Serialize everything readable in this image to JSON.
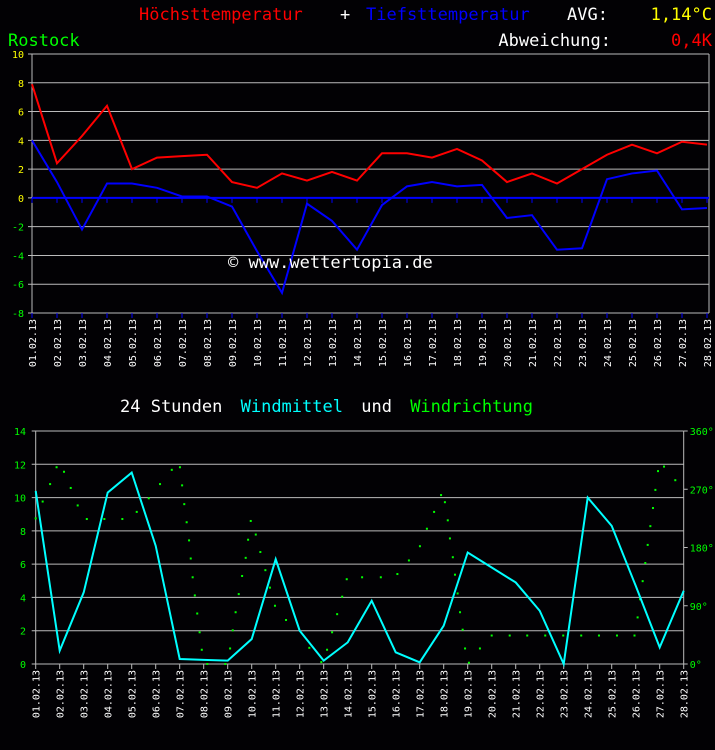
{
  "header": {
    "title_high": "Höchsttemperatur",
    "title_plus": "+",
    "title_low": "Tiefsttemperatur",
    "avg_label": "AVG:",
    "avg_value": "1,14°C",
    "location": "Rostock",
    "deviation_label": "Abweichung:",
    "deviation_value": "0,4K",
    "watermark": "© www.wettertopia.de"
  },
  "colors": {
    "background": "#020104",
    "high": "#ff0000",
    "low": "#0000ff",
    "wind_speed": "#00ffff",
    "wind_dir": "#00ff00",
    "grid": "#bbbbbb",
    "positive_tick": "#ffff00",
    "negative_tick": "#00ff00"
  },
  "wind_title": {
    "part1": "24 Stunden",
    "part2": "Windmittel",
    "part3": "und",
    "part4": "Windrichtung"
  },
  "chart_data": [
    {
      "type": "line",
      "categories": [
        "01.02.13",
        "02.02.13",
        "03.02.13",
        "04.02.13",
        "05.02.13",
        "06.02.13",
        "07.02.13",
        "08.02.13",
        "09.02.13",
        "10.02.13",
        "11.02.13",
        "12.02.13",
        "13.02.13",
        "14.02.13",
        "15.02.13",
        "16.02.13",
        "17.02.13",
        "18.02.13",
        "19.02.13",
        "20.02.13",
        "21.02.13",
        "22.02.13",
        "23.02.13",
        "24.02.13",
        "25.02.13",
        "26.02.13",
        "27.02.13",
        "28.02.13"
      ],
      "series": [
        {
          "name": "Höchsttemperatur",
          "color": "#ff0000",
          "values": [
            7.9,
            2.4,
            4.3,
            6.4,
            2.0,
            2.8,
            2.9,
            3.0,
            1.1,
            0.7,
            1.7,
            1.2,
            1.8,
            1.2,
            3.1,
            3.1,
            2.8,
            3.4,
            2.6,
            1.1,
            1.7,
            1.0,
            2.0,
            3.0,
            3.7,
            3.1,
            3.9,
            3.7
          ]
        },
        {
          "name": "Tiefsttemperatur",
          "color": "#0000ff",
          "values": [
            4.0,
            1.1,
            -2.2,
            1.0,
            1.0,
            0.7,
            0.1,
            0.1,
            -0.6,
            -3.7,
            -6.6,
            -0.4,
            -1.6,
            -3.6,
            -0.5,
            0.8,
            1.1,
            0.8,
            0.9,
            -1.4,
            -1.2,
            -3.6,
            -3.5,
            1.3,
            1.7,
            1.9,
            -0.8,
            -0.7
          ]
        }
      ],
      "ylim": [
        -8,
        10
      ],
      "yticks": [
        "10",
        "8",
        "6",
        "4",
        "2",
        "0",
        "-2",
        "-4",
        "-6",
        "-8"
      ],
      "grid": true
    },
    {
      "type": "line",
      "categories": [
        "01.02.13",
        "02.02.13",
        "03.02.13",
        "04.02.13",
        "05.02.13",
        "06.02.13",
        "07.02.13",
        "08.02.13",
        "09.02.13",
        "10.02.13",
        "11.02.13",
        "12.02.13",
        "13.02.13",
        "14.02.13",
        "15.02.13",
        "16.02.13",
        "17.02.13",
        "18.02.13",
        "19.02.13",
        "20.02.13",
        "21.02.13",
        "22.02.13",
        "23.02.13",
        "24.02.13",
        "25.02.13",
        "26.02.13",
        "27.02.13",
        "28.02.13"
      ],
      "series": [
        {
          "name": "Windmittel",
          "color": "#00ffff",
          "values": [
            10.4,
            0.8,
            4.3,
            10.3,
            11.5,
            7.1,
            0.3,
            0.25,
            0.2,
            1.5,
            6.3,
            2.0,
            0.2,
            1.3,
            3.8,
            0.7,
            0.1,
            2.3,
            6.7,
            5.8,
            4.9,
            3.2,
            0.0,
            10.0,
            8.3,
            4.7,
            1.0,
            4.4
          ]
        },
        {
          "name": "Windrichtung",
          "color": "#00ff00",
          "type": "scatter",
          "axis": "right",
          "points": [
            [
              1.0,
              225
            ],
            [
              1.29,
              251
            ],
            [
              1.6,
              278
            ],
            [
              1.87,
              304
            ],
            [
              2.18,
              297
            ],
            [
              2.46,
              272
            ],
            [
              2.75,
              245
            ],
            [
              3.13,
              224
            ],
            [
              3.86,
              224
            ],
            [
              4.61,
              224
            ],
            [
              5.21,
              235
            ],
            [
              5.71,
              256
            ],
            [
              6.18,
              278
            ],
            [
              6.67,
              300
            ],
            [
              7.01,
              304
            ],
            [
              7.1,
              276
            ],
            [
              7.19,
              247
            ],
            [
              7.29,
              219
            ],
            [
              7.39,
              191
            ],
            [
              7.46,
              163
            ],
            [
              7.54,
              134
            ],
            [
              7.63,
              106
            ],
            [
              7.73,
              78
            ],
            [
              7.83,
              49
            ],
            [
              7.92,
              22
            ],
            [
              8.15,
              0
            ],
            [
              8.9,
              0
            ],
            [
              9.1,
              24
            ],
            [
              9.21,
              52
            ],
            [
              9.33,
              80
            ],
            [
              9.46,
              108
            ],
            [
              9.6,
              136
            ],
            [
              9.75,
              164
            ],
            [
              9.85,
              192
            ],
            [
              9.96,
              221
            ],
            [
              10.17,
              200
            ],
            [
              10.36,
              173
            ],
            [
              10.57,
              145
            ],
            [
              10.76,
              118
            ],
            [
              10.97,
              90
            ],
            [
              11.43,
              68
            ],
            [
              12.4,
              25
            ],
            [
              12.9,
              3
            ],
            [
              13.14,
              22
            ],
            [
              13.35,
              49
            ],
            [
              13.56,
              77
            ],
            [
              13.77,
              104
            ],
            [
              13.96,
              131
            ],
            [
              14.6,
              134
            ],
            [
              15.38,
              134
            ],
            [
              16.07,
              139
            ],
            [
              16.55,
              160
            ],
            [
              17.01,
              182
            ],
            [
              17.3,
              209
            ],
            [
              17.6,
              235
            ],
            [
              17.89,
              261
            ],
            [
              18.05,
              250
            ],
            [
              18.17,
              222
            ],
            [
              18.26,
              194
            ],
            [
              18.38,
              165
            ],
            [
              18.47,
              138
            ],
            [
              18.58,
              109
            ],
            [
              18.68,
              80
            ],
            [
              18.79,
              53
            ],
            [
              18.89,
              24
            ],
            [
              19.05,
              2
            ],
            [
              19.51,
              24
            ],
            [
              20.0,
              44
            ],
            [
              20.75,
              44
            ],
            [
              21.48,
              44
            ],
            [
              22.23,
              44
            ],
            [
              22.98,
              44
            ],
            [
              23.73,
              44
            ],
            [
              24.47,
              44
            ],
            [
              25.22,
              44
            ],
            [
              25.95,
              44
            ],
            [
              26.08,
              72
            ],
            [
              26.18,
              100
            ],
            [
              26.29,
              128
            ],
            [
              26.4,
              156
            ],
            [
              26.5,
              184
            ],
            [
              26.61,
              213
            ],
            [
              26.72,
              241
            ],
            [
              26.82,
              269
            ],
            [
              26.93,
              298
            ],
            [
              27.18,
              305
            ],
            [
              27.65,
              284
            ]
          ]
        }
      ],
      "ylim": [
        0,
        14
      ],
      "yticks": [
        "0",
        "2",
        "4",
        "6",
        "8",
        "10",
        "12",
        "14"
      ],
      "y2lim": [
        0,
        360
      ],
      "y2ticks": [
        "0°",
        "90°",
        "180°",
        "270°",
        "360°"
      ],
      "grid": true
    }
  ]
}
